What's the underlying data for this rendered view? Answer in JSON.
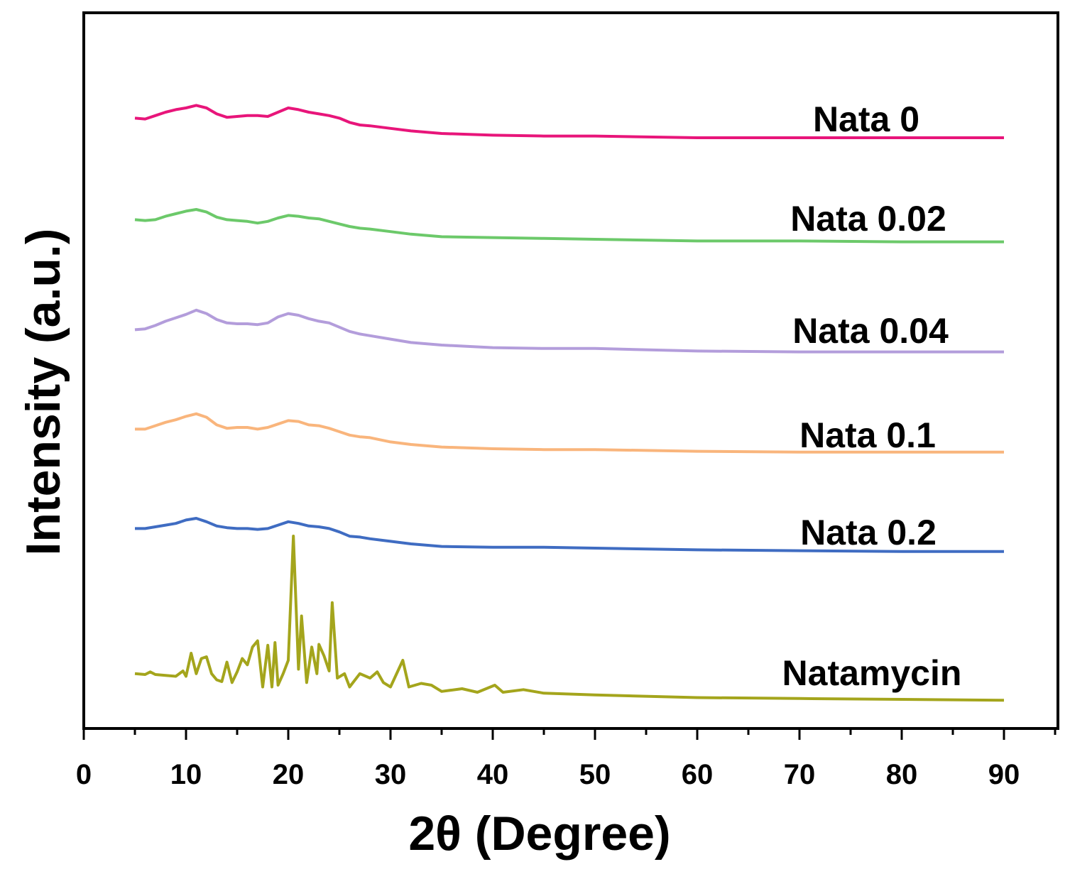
{
  "chart_data": {
    "type": "line",
    "title": "",
    "xlabel": "2θ (Degree)",
    "ylabel": "Intensity (a.u.)",
    "xlim": [
      0,
      95
    ],
    "x_ticks": [
      0,
      10,
      20,
      30,
      40,
      50,
      60,
      70,
      80,
      90
    ],
    "y_ticks_shown": false,
    "grid": false,
    "legend": "inline labels at right end of each trace",
    "x_range": [
      5,
      90
    ],
    "series": [
      {
        "name": "Nata 0",
        "color": "#e8157a",
        "points": [
          [
            5,
            0.03
          ],
          [
            6,
            0.02
          ],
          [
            7,
            0.06
          ],
          [
            8,
            0.1
          ],
          [
            9,
            0.13
          ],
          [
            10,
            0.15
          ],
          [
            11,
            0.18
          ],
          [
            12,
            0.15
          ],
          [
            13,
            0.08
          ],
          [
            14,
            0.04
          ],
          [
            15,
            0.05
          ],
          [
            16,
            0.06
          ],
          [
            17,
            0.06
          ],
          [
            18,
            0.05
          ],
          [
            19,
            0.1
          ],
          [
            20,
            0.15
          ],
          [
            21,
            0.13
          ],
          [
            22,
            0.1
          ],
          [
            23,
            0.08
          ],
          [
            24,
            0.06
          ],
          [
            25,
            0.03
          ],
          [
            26,
            -0.02
          ],
          [
            27,
            -0.05
          ],
          [
            28,
            -0.06
          ],
          [
            30,
            -0.09
          ],
          [
            32,
            -0.12
          ],
          [
            35,
            -0.15
          ],
          [
            40,
            -0.17
          ],
          [
            45,
            -0.18
          ],
          [
            50,
            -0.18
          ],
          [
            60,
            -0.2
          ],
          [
            70,
            -0.2
          ],
          [
            80,
            -0.2
          ],
          [
            90,
            -0.2
          ]
        ]
      },
      {
        "name": "Nata 0.02",
        "color": "#6cc96a",
        "points": [
          [
            5,
            0.03
          ],
          [
            6,
            0.02
          ],
          [
            7,
            0.03
          ],
          [
            8,
            0.07
          ],
          [
            9,
            0.1
          ],
          [
            10,
            0.13
          ],
          [
            11,
            0.15
          ],
          [
            12,
            0.12
          ],
          [
            13,
            0.06
          ],
          [
            14,
            0.03
          ],
          [
            15,
            0.02
          ],
          [
            16,
            0.01
          ],
          [
            17,
            -0.01
          ],
          [
            18,
            0.01
          ],
          [
            19,
            0.05
          ],
          [
            20,
            0.08
          ],
          [
            21,
            0.07
          ],
          [
            22,
            0.05
          ],
          [
            23,
            0.04
          ],
          [
            24,
            0.01
          ],
          [
            25,
            -0.02
          ],
          [
            26,
            -0.05
          ],
          [
            27,
            -0.07
          ],
          [
            28,
            -0.08
          ],
          [
            30,
            -0.11
          ],
          [
            32,
            -0.14
          ],
          [
            35,
            -0.17
          ],
          [
            40,
            -0.18
          ],
          [
            45,
            -0.19
          ],
          [
            50,
            -0.2
          ],
          [
            60,
            -0.22
          ],
          [
            70,
            -0.22
          ],
          [
            80,
            -0.23
          ],
          [
            90,
            -0.23
          ]
        ]
      },
      {
        "name": "Nata 0.04",
        "color": "#b39ddb",
        "points": [
          [
            5,
            0.03
          ],
          [
            6,
            0.04
          ],
          [
            7,
            0.08
          ],
          [
            8,
            0.13
          ],
          [
            9,
            0.17
          ],
          [
            10,
            0.21
          ],
          [
            11,
            0.26
          ],
          [
            12,
            0.22
          ],
          [
            13,
            0.15
          ],
          [
            14,
            0.11
          ],
          [
            15,
            0.1
          ],
          [
            16,
            0.1
          ],
          [
            17,
            0.09
          ],
          [
            18,
            0.11
          ],
          [
            19,
            0.18
          ],
          [
            20,
            0.22
          ],
          [
            21,
            0.2
          ],
          [
            22,
            0.16
          ],
          [
            23,
            0.13
          ],
          [
            24,
            0.11
          ],
          [
            25,
            0.06
          ],
          [
            26,
            0.01
          ],
          [
            27,
            -0.02
          ],
          [
            28,
            -0.04
          ],
          [
            30,
            -0.08
          ],
          [
            32,
            -0.12
          ],
          [
            35,
            -0.15
          ],
          [
            40,
            -0.18
          ],
          [
            45,
            -0.19
          ],
          [
            50,
            -0.19
          ],
          [
            60,
            -0.22
          ],
          [
            70,
            -0.23
          ],
          [
            80,
            -0.23
          ],
          [
            90,
            -0.23
          ]
        ]
      },
      {
        "name": "Nata 0.1",
        "color": "#f9b57c",
        "points": [
          [
            5,
            0.03
          ],
          [
            6,
            0.03
          ],
          [
            7,
            0.07
          ],
          [
            8,
            0.11
          ],
          [
            9,
            0.14
          ],
          [
            10,
            0.18
          ],
          [
            11,
            0.21
          ],
          [
            12,
            0.17
          ],
          [
            13,
            0.08
          ],
          [
            14,
            0.04
          ],
          [
            15,
            0.05
          ],
          [
            16,
            0.05
          ],
          [
            17,
            0.03
          ],
          [
            18,
            0.05
          ],
          [
            19,
            0.09
          ],
          [
            20,
            0.13
          ],
          [
            21,
            0.12
          ],
          [
            22,
            0.08
          ],
          [
            23,
            0.07
          ],
          [
            24,
            0.04
          ],
          [
            25,
            0.0
          ],
          [
            26,
            -0.04
          ],
          [
            27,
            -0.06
          ],
          [
            28,
            -0.07
          ],
          [
            30,
            -0.12
          ],
          [
            32,
            -0.15
          ],
          [
            35,
            -0.18
          ],
          [
            40,
            -0.2
          ],
          [
            45,
            -0.21
          ],
          [
            50,
            -0.21
          ],
          [
            60,
            -0.23
          ],
          [
            70,
            -0.24
          ],
          [
            80,
            -0.24
          ],
          [
            90,
            -0.24
          ]
        ]
      },
      {
        "name": "Nata 0.2",
        "color": "#3f6cc2",
        "points": [
          [
            5,
            0.03
          ],
          [
            6,
            0.03
          ],
          [
            7,
            0.05
          ],
          [
            8,
            0.07
          ],
          [
            9,
            0.09
          ],
          [
            10,
            0.13
          ],
          [
            11,
            0.15
          ],
          [
            12,
            0.11
          ],
          [
            13,
            0.06
          ],
          [
            14,
            0.04
          ],
          [
            15,
            0.03
          ],
          [
            16,
            0.03
          ],
          [
            17,
            0.02
          ],
          [
            18,
            0.03
          ],
          [
            19,
            0.07
          ],
          [
            20,
            0.11
          ],
          [
            21,
            0.09
          ],
          [
            22,
            0.06
          ],
          [
            23,
            0.05
          ],
          [
            24,
            0.03
          ],
          [
            25,
            -0.01
          ],
          [
            26,
            -0.06
          ],
          [
            27,
            -0.07
          ],
          [
            28,
            -0.09
          ],
          [
            30,
            -0.12
          ],
          [
            32,
            -0.15
          ],
          [
            35,
            -0.18
          ],
          [
            40,
            -0.19
          ],
          [
            45,
            -0.19
          ],
          [
            50,
            -0.2
          ],
          [
            60,
            -0.22
          ],
          [
            70,
            -0.23
          ],
          [
            80,
            -0.24
          ],
          [
            90,
            -0.24
          ]
        ]
      },
      {
        "name": "Natamycin",
        "color": "#a4a51c",
        "points": [
          [
            5,
            0.05
          ],
          [
            6,
            0.04
          ],
          [
            6.5,
            0.07
          ],
          [
            7,
            0.04
          ],
          [
            8,
            0.03
          ],
          [
            9,
            0.02
          ],
          [
            9.7,
            0.08
          ],
          [
            10,
            0.02
          ],
          [
            10.5,
            0.28
          ],
          [
            11,
            0.05
          ],
          [
            11.5,
            0.22
          ],
          [
            12,
            0.24
          ],
          [
            12.5,
            0.05
          ],
          [
            13,
            -0.02
          ],
          [
            13.5,
            -0.04
          ],
          [
            14,
            0.18
          ],
          [
            14.5,
            -0.05
          ],
          [
            15,
            0.07
          ],
          [
            15.5,
            0.22
          ],
          [
            16,
            0.15
          ],
          [
            16.5,
            0.35
          ],
          [
            17,
            0.42
          ],
          [
            17.5,
            -0.1
          ],
          [
            18,
            0.37
          ],
          [
            18.4,
            -0.1
          ],
          [
            18.7,
            0.4
          ],
          [
            19,
            -0.08
          ],
          [
            19.5,
            0.05
          ],
          [
            20,
            0.2
          ],
          [
            20.5,
            1.6
          ],
          [
            21,
            0.1
          ],
          [
            21.3,
            0.7
          ],
          [
            21.8,
            -0.05
          ],
          [
            22.3,
            0.35
          ],
          [
            22.8,
            0.05
          ],
          [
            23,
            0.38
          ],
          [
            23.5,
            0.25
          ],
          [
            24,
            0.08
          ],
          [
            24.3,
            0.85
          ],
          [
            24.8,
            0.0
          ],
          [
            25.5,
            0.05
          ],
          [
            26,
            -0.1
          ],
          [
            27,
            0.05
          ],
          [
            28,
            0.0
          ],
          [
            28.7,
            0.07
          ],
          [
            29.3,
            -0.05
          ],
          [
            30,
            -0.1
          ],
          [
            31.2,
            0.2
          ],
          [
            31.8,
            -0.1
          ],
          [
            33,
            -0.06
          ],
          [
            34,
            -0.08
          ],
          [
            35,
            -0.15
          ],
          [
            37,
            -0.12
          ],
          [
            38.5,
            -0.16
          ],
          [
            40.2,
            -0.08
          ],
          [
            41,
            -0.16
          ],
          [
            43,
            -0.13
          ],
          [
            45,
            -0.17
          ],
          [
            50,
            -0.19
          ],
          [
            60,
            -0.22
          ],
          [
            70,
            -0.23
          ],
          [
            80,
            -0.24
          ],
          [
            90,
            -0.25
          ]
        ]
      }
    ]
  }
}
